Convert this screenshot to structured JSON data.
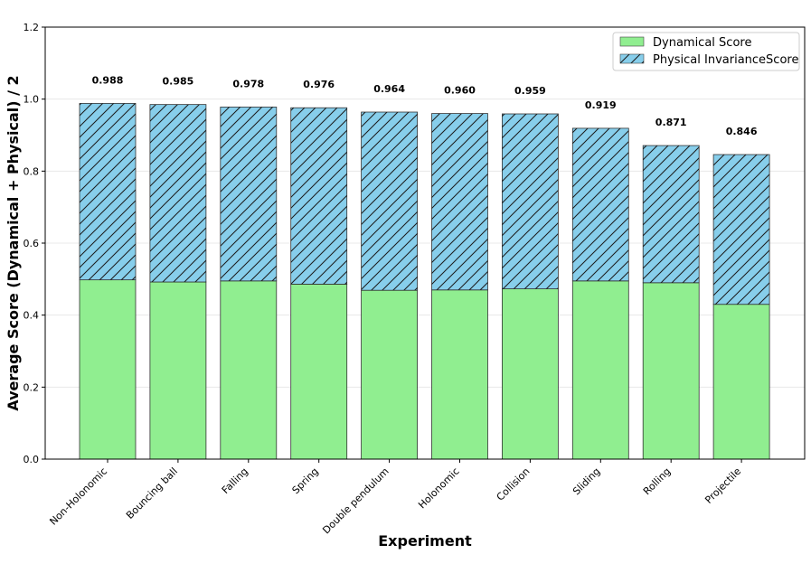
{
  "chart_data": {
    "type": "bar",
    "stacked": true,
    "title": "",
    "xlabel": "Experiment",
    "ylabel": "Average Score (Dynamical + Physical) / 2",
    "ylim": [
      0,
      1.2
    ],
    "yticks": [
      "0.0",
      "0.2",
      "0.4",
      "0.6",
      "0.8",
      "1.0",
      "1.2"
    ],
    "grid": true,
    "legend_position": "top-right",
    "categories": [
      "Non-Holonomic",
      "Bouncing ball",
      "Falling",
      "Spring",
      "Double pendulum",
      "Holonomic",
      "Collision",
      "Sliding",
      "Rolling",
      "Projectile"
    ],
    "series": [
      {
        "name": "Dynamical Score",
        "color": "#90EE90",
        "values": [
          0.498,
          0.492,
          0.495,
          0.486,
          0.469,
          0.47,
          0.473,
          0.495,
          0.49,
          0.43
        ]
      },
      {
        "name": "Physical InvarianceScore",
        "color": "#87CEEB",
        "hatch": "diagonal",
        "values": [
          0.49,
          0.493,
          0.483,
          0.49,
          0.495,
          0.49,
          0.486,
          0.424,
          0.381,
          0.416
        ]
      }
    ],
    "totals": [
      "0.988",
      "0.985",
      "0.978",
      "0.976",
      "0.964",
      "0.960",
      "0.959",
      "0.919",
      "0.871",
      "0.846"
    ]
  }
}
